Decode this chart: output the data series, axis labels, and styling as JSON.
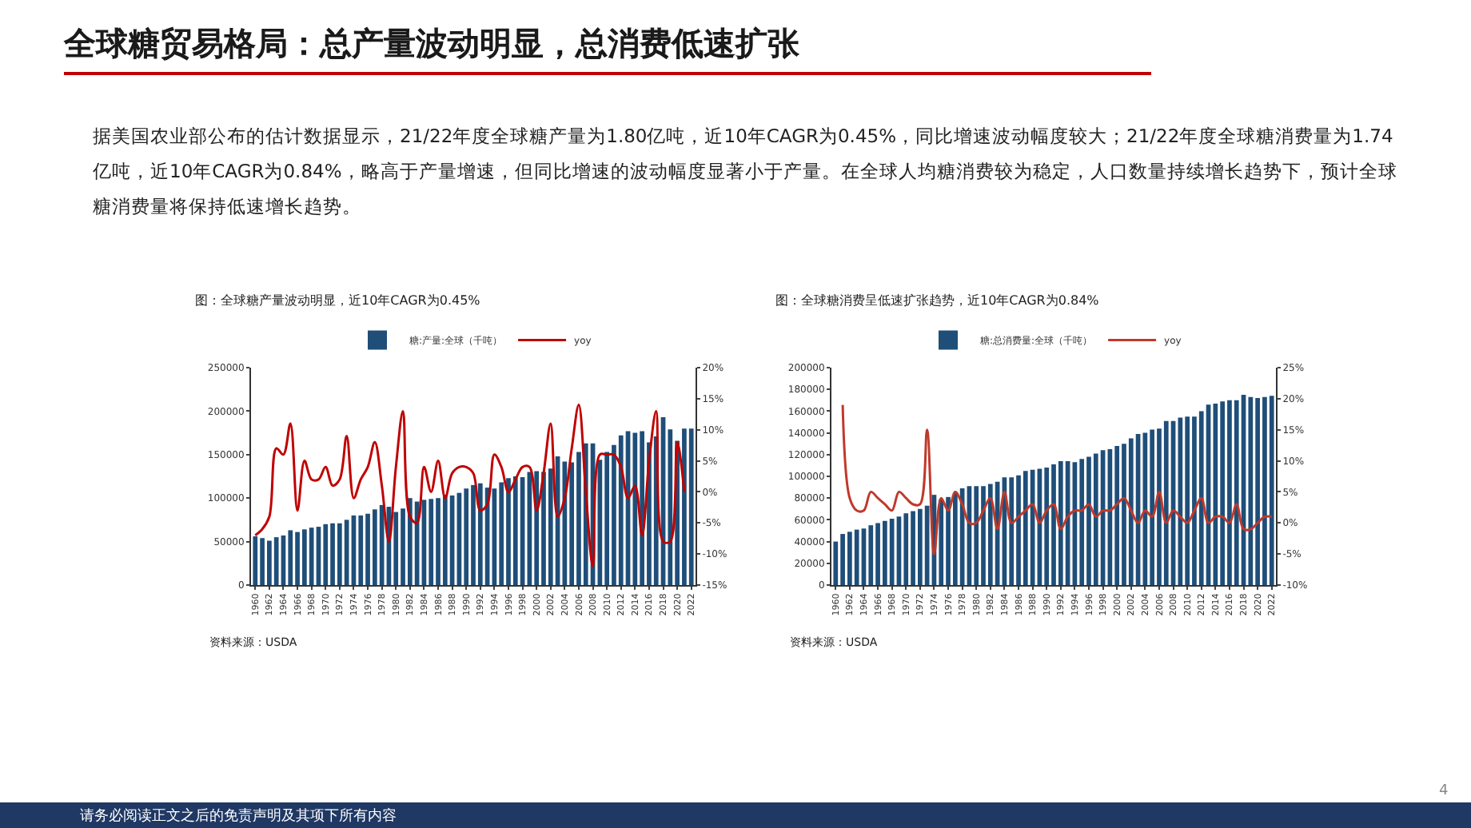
{
  "chart_data": [
    {
      "type": "other",
      "title": "全球糖贸易格局：总产量波动明显，总消费低速扩张",
      "annotations": [
        "据美国农业部公布的估计数据显示，21/22年度全球糖产量为1.80亿吨，近10年CAGR为0.45%，同比增速波动幅度较大；21/22年度全球糖消费量为1.74亿吨，近10年CAGR为0.84%，略高于产量增速，但同比增速的波动幅度显著小于产量。在全球人均糖消费较为稳定，人口数量持续增长趋势下，预计全球糖消费量将保持低速增长趋势。",
        "请务必阅读正文之后的免责声明及其项下所有内容",
        "4"
      ]
    },
    {
      "type": "bar",
      "title": "图：全球糖产量波动明显，近10年CAGR为0.45%",
      "annotations": [
        "资料来源：USDA"
      ],
      "legend": "top",
      "marker": "none",
      "categories": [
        "1960",
        null,
        "1962",
        null,
        "1964",
        null,
        "1966",
        null,
        "1968",
        null,
        "1970",
        null,
        "1972",
        null,
        "1974",
        null,
        "1976",
        null,
        "1978",
        null,
        "1980",
        null,
        "1982",
        null,
        "1984",
        null,
        "1986",
        null,
        "1988",
        null,
        "1990",
        null,
        "1992",
        null,
        "1994",
        null,
        "1996",
        null,
        "1998",
        null,
        "2000",
        null,
        "2002",
        null,
        "2004",
        null,
        "2006",
        null,
        "2008",
        null,
        "2010",
        null,
        "2012",
        null,
        "2014",
        null,
        "2016",
        null,
        "2018",
        null,
        "2020",
        null,
        "2022"
      ],
      "series": [
        {
          "name": "糖:产量:全球（千吨）",
          "type": "bar",
          "color": "#1f4e79",
          "values": [
            56000,
            54000,
            51000,
            55000,
            57000,
            63000,
            61000,
            64000,
            66000,
            67000,
            70000,
            71000,
            71000,
            75000,
            80000,
            80000,
            82000,
            87000,
            92000,
            90000,
            84000,
            88000,
            100000,
            96000,
            98000,
            99000,
            100000,
            104000,
            103000,
            106000,
            111000,
            115000,
            117000,
            112000,
            111000,
            118000,
            123000,
            125000,
            124000,
            130000,
            131000,
            130000,
            134000,
            148000,
            142000,
            141000,
            153000,
            163000,
            163000,
            144000,
            153000,
            161000,
            172000,
            177000,
            175000,
            177000,
            164000,
            171000,
            193000,
            179000,
            166000,
            180000,
            180000
          ]
        },
        {
          "name": "yoy",
          "type": "line",
          "axis": "y2",
          "color": "#c00000",
          "values": [
            -7,
            -6,
            -4,
            7,
            6,
            11,
            -3,
            5,
            2,
            2,
            4,
            1,
            2,
            9,
            -1,
            2,
            4,
            8,
            1,
            -8,
            4,
            13,
            -4,
            -5,
            4,
            0,
            5,
            -1,
            3,
            4,
            4,
            3,
            -3,
            -2,
            6,
            4,
            0,
            2,
            4,
            4,
            -3,
            3,
            11,
            -4,
            -1,
            7,
            14,
            0,
            -12,
            6,
            6,
            6,
            4,
            -1,
            1,
            -7,
            5,
            13,
            -8,
            -8,
            8,
            0,
            null
          ]
        }
      ],
      "ylim": [
        0,
        250000
      ],
      "yticks": [
        0,
        50000,
        100000,
        150000,
        200000,
        250000
      ],
      "y2lim": [
        -15,
        20
      ],
      "y2ticks": [
        {
          "value": -15,
          "label": "-15%"
        },
        {
          "value": -10,
          "label": "-10%"
        },
        {
          "value": -5,
          "label": "-5%"
        },
        {
          "value": 0,
          "label": "0%"
        },
        {
          "value": 5,
          "label": "5%"
        },
        {
          "value": 10,
          "label": "10%"
        },
        {
          "value": 15,
          "label": "15%"
        },
        {
          "value": 20,
          "label": "20%"
        }
      ]
    },
    {
      "type": "bar",
      "title": "图：全球糖消费呈低速扩张趋势，近10年CAGR为0.84%",
      "annotations": [
        "资料来源：USDA"
      ],
      "legend": "top",
      "marker": "none",
      "categories": [
        "1960",
        null,
        "1962",
        null,
        "1964",
        null,
        "1966",
        null,
        "1968",
        null,
        "1970",
        null,
        "1972",
        null,
        "1974",
        null,
        "1976",
        null,
        "1978",
        null,
        "1980",
        null,
        "1982",
        null,
        "1984",
        null,
        "1986",
        null,
        "1988",
        null,
        "1990",
        null,
        "1992",
        null,
        "1994",
        null,
        "1996",
        null,
        "1998",
        null,
        "2000",
        null,
        "2002",
        null,
        "2004",
        null,
        "2006",
        null,
        "2008",
        null,
        "2010",
        null,
        "2012",
        null,
        "2014",
        null,
        "2016",
        null,
        "2018",
        null,
        "2020",
        null,
        "2022"
      ],
      "series": [
        {
          "name": "糖:总消费量:全球（千吨）",
          "type": "bar",
          "color": "#1f4e79",
          "values": [
            40000,
            47000,
            49000,
            51000,
            52000,
            55000,
            57000,
            59000,
            61000,
            63000,
            66000,
            68000,
            70000,
            73000,
            83000,
            79000,
            81000,
            85000,
            89000,
            91000,
            91000,
            91000,
            93000,
            95000,
            99000,
            99000,
            101000,
            105000,
            106000,
            107000,
            108000,
            111000,
            114000,
            114000,
            113000,
            116000,
            118000,
            121000,
            124000,
            125000,
            128000,
            130000,
            135000,
            139000,
            140000,
            143000,
            144000,
            151000,
            151000,
            154000,
            155000,
            155000,
            160000,
            166000,
            167000,
            169000,
            170000,
            170000,
            175000,
            173000,
            172000,
            173000,
            174000
          ]
        },
        {
          "name": "yoy",
          "type": "line",
          "axis": "y2",
          "color": "#c0392b",
          "values": [
            null,
            19,
            4,
            2,
            2,
            5,
            4,
            3,
            2,
            5,
            4,
            3,
            3,
            15,
            -5,
            4,
            2,
            5,
            3,
            0,
            0,
            2,
            4,
            -1,
            5,
            0,
            1,
            2,
            3,
            0,
            2,
            3,
            -1,
            1,
            2,
            2,
            3,
            1,
            2,
            2,
            3,
            4,
            2,
            0,
            2,
            1,
            5,
            0,
            2,
            1,
            0,
            2,
            4,
            0,
            1,
            1,
            0,
            3,
            -1,
            -1,
            0,
            1,
            1
          ]
        }
      ],
      "ylim": [
        0,
        200000
      ],
      "yticks": [
        0,
        20000,
        40000,
        60000,
        80000,
        100000,
        120000,
        140000,
        160000,
        180000,
        200000
      ],
      "y2lim": [
        -10,
        25
      ],
      "y2ticks": [
        {
          "value": -10,
          "label": "-10%"
        },
        {
          "value": -5,
          "label": "-5%"
        },
        {
          "value": 0,
          "label": "0%"
        },
        {
          "value": 5,
          "label": "5%"
        },
        {
          "value": 10,
          "label": "10%"
        },
        {
          "value": 15,
          "label": "15%"
        },
        {
          "value": 20,
          "label": "20%"
        },
        {
          "value": 25,
          "label": "25%"
        }
      ]
    }
  ]
}
